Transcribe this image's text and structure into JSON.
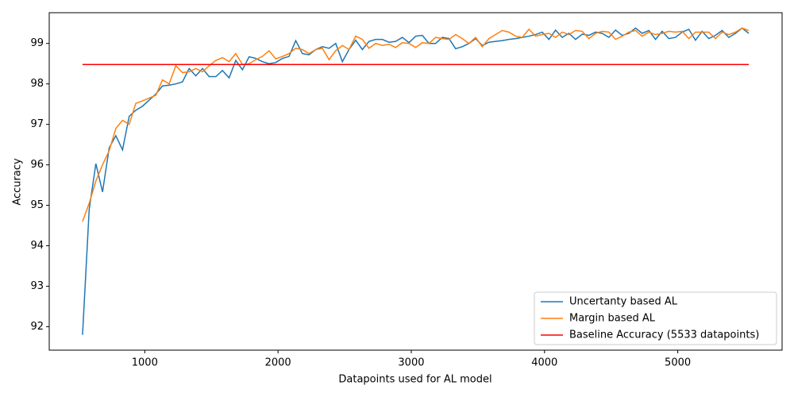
{
  "chart_data": {
    "type": "line",
    "xlabel": "Datapoints used for AL model",
    "ylabel": "Accuracy",
    "x": [
      533,
      583,
      633,
      683,
      733,
      783,
      833,
      883,
      933,
      983,
      1033,
      1083,
      1133,
      1183,
      1233,
      1283,
      1333,
      1383,
      1433,
      1483,
      1533,
      1583,
      1633,
      1683,
      1733,
      1783,
      1833,
      1883,
      1933,
      1983,
      2033,
      2083,
      2133,
      2183,
      2233,
      2283,
      2333,
      2383,
      2433,
      2483,
      2533,
      2583,
      2633,
      2683,
      2733,
      2783,
      2833,
      2883,
      2933,
      2983,
      3033,
      3083,
      3133,
      3183,
      3233,
      3283,
      3333,
      3383,
      3433,
      3483,
      3533,
      3583,
      3633,
      3683,
      3733,
      3783,
      3833,
      3883,
      3933,
      3983,
      4033,
      4083,
      4133,
      4183,
      4233,
      4283,
      4333,
      4383,
      4433,
      4483,
      4533,
      4583,
      4633,
      4683,
      4733,
      4783,
      4833,
      4883,
      4933,
      4983,
      5033,
      5083,
      5133,
      5183,
      5233,
      5283,
      5333,
      5383,
      5433,
      5483,
      5533
    ],
    "series": [
      {
        "name": "Uncertanty based AL",
        "color": "#1f77b4",
        "values": [
          91.8,
          94.9,
          96.03,
          95.33,
          96.42,
          96.72,
          96.37,
          97.2,
          97.35,
          97.45,
          97.6,
          97.75,
          97.95,
          97.97,
          98.0,
          98.05,
          98.38,
          98.2,
          98.38,
          98.18,
          98.18,
          98.33,
          98.15,
          98.58,
          98.35,
          98.67,
          98.63,
          98.55,
          98.5,
          98.53,
          98.63,
          98.68,
          99.07,
          98.75,
          98.72,
          98.85,
          98.92,
          98.88,
          99.0,
          98.55,
          98.85,
          99.08,
          98.85,
          99.05,
          99.1,
          99.1,
          99.03,
          99.05,
          99.15,
          99.02,
          99.18,
          99.2,
          99.0,
          99.0,
          99.15,
          99.12,
          98.87,
          98.92,
          99.0,
          99.12,
          98.95,
          99.03,
          99.05,
          99.07,
          99.1,
          99.12,
          99.15,
          99.18,
          99.22,
          99.28,
          99.1,
          99.33,
          99.15,
          99.25,
          99.1,
          99.23,
          99.2,
          99.28,
          99.25,
          99.15,
          99.33,
          99.2,
          99.25,
          99.38,
          99.25,
          99.32,
          99.1,
          99.3,
          99.12,
          99.15,
          99.28,
          99.35,
          99.08,
          99.3,
          99.12,
          99.2,
          99.32,
          99.15,
          99.25,
          99.38,
          99.25
        ]
      },
      {
        "name": "Margin based AL",
        "color": "#ff7f0e",
        "values": [
          94.6,
          95.05,
          95.6,
          96.0,
          96.35,
          96.9,
          97.1,
          97.0,
          97.52,
          97.58,
          97.65,
          97.72,
          98.1,
          98.0,
          98.45,
          98.28,
          98.3,
          98.38,
          98.3,
          98.45,
          98.58,
          98.65,
          98.55,
          98.75,
          98.48,
          98.5,
          98.6,
          98.68,
          98.82,
          98.62,
          98.68,
          98.75,
          98.88,
          98.85,
          98.75,
          98.85,
          98.88,
          98.6,
          98.82,
          98.95,
          98.85,
          99.18,
          99.1,
          98.88,
          99.0,
          98.95,
          98.98,
          98.9,
          99.02,
          99.0,
          98.9,
          99.02,
          99.0,
          99.15,
          99.12,
          99.1,
          99.22,
          99.12,
          99.0,
          99.15,
          98.92,
          99.12,
          99.22,
          99.32,
          99.28,
          99.18,
          99.15,
          99.35,
          99.18,
          99.22,
          99.25,
          99.15,
          99.28,
          99.22,
          99.32,
          99.3,
          99.12,
          99.25,
          99.3,
          99.28,
          99.1,
          99.18,
          99.28,
          99.32,
          99.18,
          99.28,
          99.22,
          99.25,
          99.3,
          99.28,
          99.3,
          99.12,
          99.28,
          99.28,
          99.28,
          99.12,
          99.28,
          99.22,
          99.28,
          99.38,
          99.32
        ]
      },
      {
        "name": "Baseline Accuracy (5533 datapoints)",
        "color": "#ff0000",
        "x": [
          533,
          5533
        ],
        "values": [
          98.48,
          98.48
        ]
      }
    ],
    "xlim": [
      283,
      5783
    ],
    "xticks": [
      1000,
      2000,
      3000,
      4000,
      5000
    ],
    "ylim": [
      91.42,
      99.76
    ],
    "yticks": [
      92,
      93,
      94,
      95,
      96,
      97,
      98,
      99
    ],
    "legend": "lower right"
  }
}
